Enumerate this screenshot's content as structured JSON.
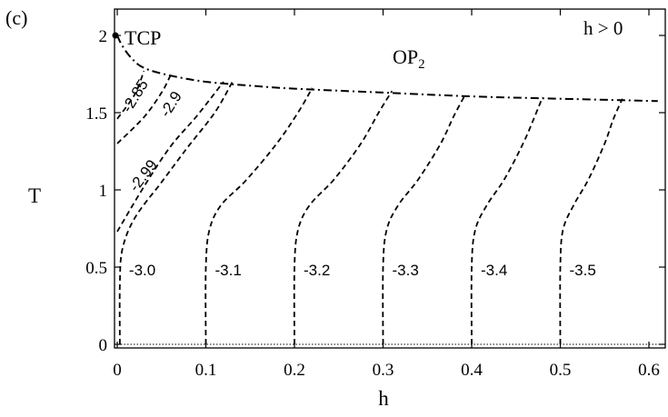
{
  "chart_data": {
    "type": "line",
    "panel_label": "(c)",
    "xlabel": "h",
    "ylabel": "T",
    "xlim": [
      0,
      0.61
    ],
    "ylim": [
      -0.03,
      2.22
    ],
    "xticks": [
      "0",
      "0.1",
      "0.2",
      "0.3",
      "0.4",
      "0.5",
      "0.6"
    ],
    "yticks": [
      "0",
      "0.5",
      "1",
      "1.5",
      "2"
    ],
    "annotations": {
      "tcp": "TCP",
      "phase": "OP",
      "phase_sub": "2",
      "condition": "h > 0"
    },
    "boundary": {
      "style": "dash-dot",
      "points": [
        [
          0,
          2.0
        ],
        [
          0.005,
          1.94
        ],
        [
          0.015,
          1.86
        ],
        [
          0.03,
          1.79
        ],
        [
          0.06,
          1.74
        ],
        [
          0.1,
          1.7
        ],
        [
          0.15,
          1.675
        ],
        [
          0.2,
          1.655
        ],
        [
          0.3,
          1.63
        ],
        [
          0.4,
          1.605
        ],
        [
          0.5,
          1.59
        ],
        [
          0.61,
          1.575
        ]
      ]
    },
    "tcp_point": [
      0,
      2.0
    ],
    "baseline_T": 0,
    "series": [
      {
        "label": "-2.85",
        "points": [
          [
            0,
            1.46
          ],
          [
            0.02,
            1.62
          ],
          [
            0.03,
            1.77
          ]
        ]
      },
      {
        "label": "-2.9",
        "points": [
          [
            0,
            1.3
          ],
          [
            0.03,
            1.47
          ],
          [
            0.05,
            1.63
          ],
          [
            0.06,
            1.74
          ]
        ]
      },
      {
        "label": "-2.99",
        "points": [
          [
            0,
            0.73
          ],
          [
            0.03,
            1.02
          ],
          [
            0.06,
            1.28
          ],
          [
            0.09,
            1.48
          ],
          [
            0.12,
            1.7
          ]
        ]
      },
      {
        "label": "-3.0",
        "points": [
          [
            0.003,
            0
          ],
          [
            0.003,
            0.4
          ],
          [
            0.006,
            0.62
          ],
          [
            0.02,
            0.82
          ],
          [
            0.05,
            1.05
          ],
          [
            0.08,
            1.28
          ],
          [
            0.11,
            1.5
          ],
          [
            0.13,
            1.7
          ]
        ]
      },
      {
        "label": "-3.1",
        "points": [
          [
            0.1,
            0
          ],
          [
            0.1,
            0.5
          ],
          [
            0.104,
            0.74
          ],
          [
            0.117,
            0.9
          ],
          [
            0.145,
            1.06
          ],
          [
            0.18,
            1.3
          ],
          [
            0.205,
            1.51
          ],
          [
            0.22,
            1.66
          ]
        ]
      },
      {
        "label": "-3.2",
        "points": [
          [
            0.2,
            0
          ],
          [
            0.2,
            0.5
          ],
          [
            0.204,
            0.74
          ],
          [
            0.217,
            0.9
          ],
          [
            0.245,
            1.07
          ],
          [
            0.275,
            1.3
          ],
          [
            0.295,
            1.5
          ],
          [
            0.31,
            1.64
          ]
        ]
      },
      {
        "label": "-3.3",
        "points": [
          [
            0.3,
            0
          ],
          [
            0.3,
            0.5
          ],
          [
            0.304,
            0.74
          ],
          [
            0.317,
            0.9
          ],
          [
            0.34,
            1.07
          ],
          [
            0.365,
            1.3
          ],
          [
            0.38,
            1.48
          ],
          [
            0.393,
            1.62
          ]
        ]
      },
      {
        "label": "-3.4",
        "points": [
          [
            0.4,
            0
          ],
          [
            0.4,
            0.5
          ],
          [
            0.404,
            0.74
          ],
          [
            0.417,
            0.9
          ],
          [
            0.437,
            1.07
          ],
          [
            0.458,
            1.3
          ],
          [
            0.47,
            1.46
          ],
          [
            0.48,
            1.6
          ]
        ]
      },
      {
        "label": "-3.5",
        "points": [
          [
            0.5,
            0
          ],
          [
            0.5,
            0.5
          ],
          [
            0.503,
            0.74
          ],
          [
            0.515,
            0.9
          ],
          [
            0.532,
            1.07
          ],
          [
            0.55,
            1.3
          ],
          [
            0.56,
            1.46
          ],
          [
            0.57,
            1.59
          ]
        ]
      }
    ]
  }
}
